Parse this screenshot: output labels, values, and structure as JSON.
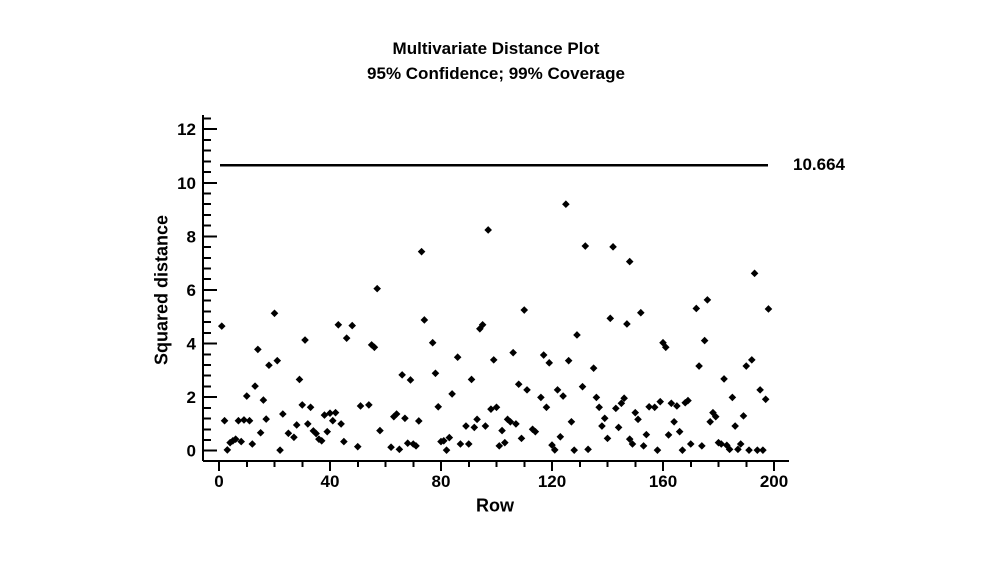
{
  "chart_data": {
    "type": "scatter",
    "title": "Multivariate Distance Plot",
    "subtitle": "95% Confidence; 99% Coverage",
    "xlabel": "Row",
    "ylabel": "Squared distance",
    "xlim": [
      0,
      200
    ],
    "ylim": [
      0,
      12
    ],
    "grid": false,
    "x_major_ticks": [
      0,
      40,
      80,
      120,
      160,
      200
    ],
    "x_minor_step": 10,
    "y_major_ticks": [
      0,
      2,
      4,
      6,
      8,
      10,
      12
    ],
    "y_minor_step": 0.4,
    "reference_line": {
      "value": 10.664,
      "label": "10.664",
      "color": "#000000"
    },
    "marker": {
      "shape": "diamond",
      "color": "#000000",
      "size": 7
    },
    "points": [
      [
        57,
        6.05
      ],
      [
        73,
        7.43
      ],
      [
        97,
        8.24
      ],
      [
        125,
        9.2
      ],
      [
        132,
        7.64
      ],
      [
        142,
        7.61
      ],
      [
        148,
        7.06
      ],
      [
        193,
        6.62
      ],
      [
        1,
        4.65
      ],
      [
        20,
        5.13
      ],
      [
        31,
        4.13
      ],
      [
        43,
        4.7
      ],
      [
        48,
        4.67
      ],
      [
        46,
        4.2
      ],
      [
        14,
        3.78
      ],
      [
        55,
        3.95
      ],
      [
        56,
        3.86
      ],
      [
        21,
        3.36
      ],
      [
        18,
        3.19
      ],
      [
        29,
        2.66
      ],
      [
        13,
        2.41
      ],
      [
        10,
        2.04
      ],
      [
        16,
        1.89
      ],
      [
        30,
        1.71
      ],
      [
        33,
        1.62
      ],
      [
        2,
        1.12
      ],
      [
        7,
        1.12
      ],
      [
        9,
        1.15
      ],
      [
        11,
        1.12
      ],
      [
        17,
        1.18
      ],
      [
        23,
        1.37
      ],
      [
        28,
        0.96
      ],
      [
        25,
        0.65
      ],
      [
        27,
        0.5
      ],
      [
        15,
        0.67
      ],
      [
        6,
        0.43
      ],
      [
        8,
        0.34
      ],
      [
        4,
        0.3
      ],
      [
        5,
        0.37
      ],
      [
        12,
        0.25
      ],
      [
        3,
        0.03
      ],
      [
        22,
        0.02
      ],
      [
        38,
        1.33
      ],
      [
        40,
        1.4
      ],
      [
        42,
        1.42
      ],
      [
        41,
        1.12
      ],
      [
        44,
        1.0
      ],
      [
        32,
        1.0
      ],
      [
        34,
        0.74
      ],
      [
        35,
        0.64
      ],
      [
        39,
        0.71
      ],
      [
        36,
        0.43
      ],
      [
        37,
        0.37
      ],
      [
        45,
        0.34
      ],
      [
        51,
        1.67
      ],
      [
        54,
        1.71
      ],
      [
        50,
        0.15
      ],
      [
        63,
        1.27
      ],
      [
        64,
        1.37
      ],
      [
        58,
        0.75
      ],
      [
        62,
        0.13
      ],
      [
        65,
        0.05
      ],
      [
        110,
        5.25
      ],
      [
        74,
        4.88
      ],
      [
        94,
        4.55
      ],
      [
        95,
        4.7
      ],
      [
        129,
        4.32
      ],
      [
        77,
        4.03
      ],
      [
        106,
        3.66
      ],
      [
        117,
        3.57
      ],
      [
        86,
        3.49
      ],
      [
        99,
        3.39
      ],
      [
        119,
        3.28
      ],
      [
        126,
        3.36
      ],
      [
        135,
        3.08
      ],
      [
        78,
        2.89
      ],
      [
        66,
        2.83
      ],
      [
        69,
        2.64
      ],
      [
        91,
        2.66
      ],
      [
        108,
        2.48
      ],
      [
        111,
        2.27
      ],
      [
        84,
        2.12
      ],
      [
        131,
        2.39
      ],
      [
        122,
        2.27
      ],
      [
        124,
        2.04
      ],
      [
        116,
        1.99
      ],
      [
        79,
        1.64
      ],
      [
        118,
        1.62
      ],
      [
        98,
        1.55
      ],
      [
        100,
        1.62
      ],
      [
        67,
        1.21
      ],
      [
        72,
        1.11
      ],
      [
        93,
        1.17
      ],
      [
        104,
        1.17
      ],
      [
        105,
        1.08
      ],
      [
        107,
        1.0
      ],
      [
        89,
        0.92
      ],
      [
        92,
        0.87
      ],
      [
        96,
        0.92
      ],
      [
        102,
        0.75
      ],
      [
        113,
        0.8
      ],
      [
        114,
        0.71
      ],
      [
        80,
        0.34
      ],
      [
        81,
        0.37
      ],
      [
        83,
        0.49
      ],
      [
        70,
        0.25
      ],
      [
        71,
        0.18
      ],
      [
        68,
        0.28
      ],
      [
        87,
        0.25
      ],
      [
        90,
        0.25
      ],
      [
        101,
        0.18
      ],
      [
        103,
        0.3
      ],
      [
        109,
        0.46
      ],
      [
        82,
        0.02
      ],
      [
        120,
        0.21
      ],
      [
        121,
        0.03
      ],
      [
        123,
        0.52
      ],
      [
        128,
        0.02
      ],
      [
        133,
        0.05
      ],
      [
        127,
        1.08
      ],
      [
        176,
        5.63
      ],
      [
        198,
        5.29
      ],
      [
        172,
        5.31
      ],
      [
        152,
        5.15
      ],
      [
        141,
        4.94
      ],
      [
        147,
        4.73
      ],
      [
        160,
        4.03
      ],
      [
        161,
        3.86
      ],
      [
        175,
        4.11
      ],
      [
        173,
        3.16
      ],
      [
        190,
        3.16
      ],
      [
        192,
        3.39
      ],
      [
        182,
        2.68
      ],
      [
        195,
        2.27
      ],
      [
        185,
        1.99
      ],
      [
        197,
        1.92
      ],
      [
        136,
        1.99
      ],
      [
        137,
        1.62
      ],
      [
        146,
        1.96
      ],
      [
        145,
        1.77
      ],
      [
        143,
        1.58
      ],
      [
        155,
        1.64
      ],
      [
        157,
        1.62
      ],
      [
        159,
        1.83
      ],
      [
        163,
        1.77
      ],
      [
        165,
        1.67
      ],
      [
        168,
        1.79
      ],
      [
        169,
        1.87
      ],
      [
        139,
        1.21
      ],
      [
        150,
        1.42
      ],
      [
        151,
        1.17
      ],
      [
        164,
        1.08
      ],
      [
        178,
        1.42
      ],
      [
        179,
        1.27
      ],
      [
        177,
        1.08
      ],
      [
        189,
        1.3
      ],
      [
        186,
        0.92
      ],
      [
        138,
        0.92
      ],
      [
        144,
        0.87
      ],
      [
        140,
        0.46
      ],
      [
        148,
        0.43
      ],
      [
        154,
        0.6
      ],
      [
        162,
        0.59
      ],
      [
        166,
        0.71
      ],
      [
        149,
        0.25
      ],
      [
        153,
        0.18
      ],
      [
        158,
        0.02
      ],
      [
        167,
        0.02
      ],
      [
        170,
        0.25
      ],
      [
        174,
        0.18
      ],
      [
        180,
        0.3
      ],
      [
        181,
        0.25
      ],
      [
        183,
        0.2
      ],
      [
        184,
        0.05
      ],
      [
        188,
        0.25
      ],
      [
        187,
        0.05
      ],
      [
        191,
        0.02
      ],
      [
        194,
        0.02
      ],
      [
        196,
        0.02
      ]
    ]
  },
  "colors": {
    "foreground": "#000000",
    "background": "#ffffff"
  }
}
